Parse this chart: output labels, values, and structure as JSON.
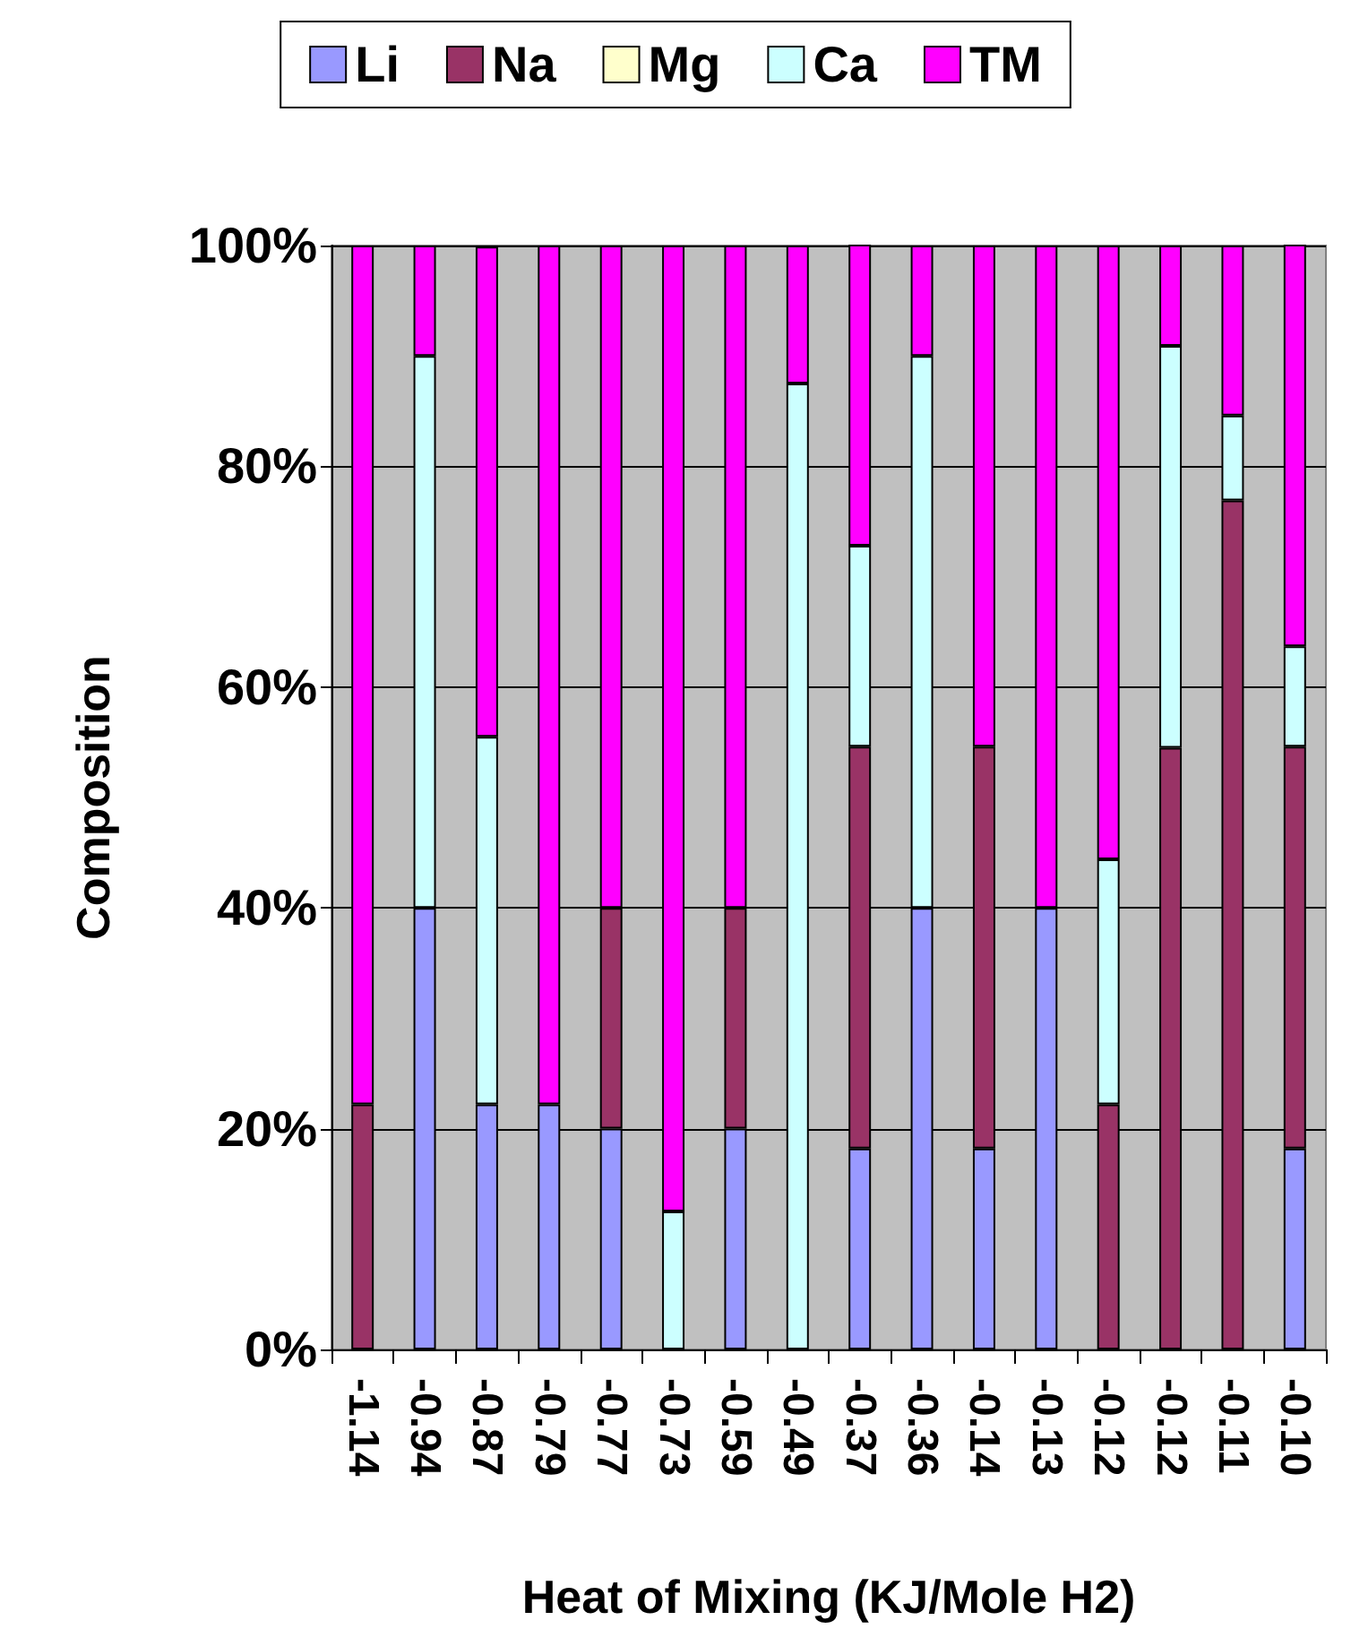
{
  "chart_data": {
    "type": "bar",
    "stacked": true,
    "xlabel": "Heat of Mixing (KJ/Mole H2)",
    "ylabel": "Composition",
    "categories": [
      "-1.14",
      "-0.94",
      "-0.87",
      "-0.79",
      "-0.77",
      "-0.73",
      "-0.59",
      "-0.49",
      "-0.37",
      "-0.36",
      "-0.14",
      "-0.13",
      "-0.12",
      "-0.12",
      "-0.11",
      "-0.10"
    ],
    "series": [
      {
        "name": "Li",
        "color": "#9999ff",
        "values": [
          0,
          40,
          22.2,
          22.2,
          20,
          0,
          20,
          0,
          18.2,
          40,
          18.2,
          40,
          0,
          0,
          0,
          18.2
        ]
      },
      {
        "name": "Na",
        "color": "#993366",
        "values": [
          22.2,
          0,
          0,
          0,
          20,
          0,
          20,
          0,
          36.4,
          0,
          36.4,
          0,
          22.2,
          54.5,
          76.9,
          36.4
        ]
      },
      {
        "name": "Mg",
        "color": "#ffffcc",
        "values": [
          0,
          0,
          0,
          0,
          0,
          0,
          0,
          0,
          0,
          0,
          0,
          0,
          0,
          0,
          0,
          0
        ]
      },
      {
        "name": "Ca",
        "color": "#ccffff",
        "values": [
          0,
          50,
          33.3,
          0,
          0,
          12.5,
          0,
          87.5,
          18.2,
          50,
          0,
          0,
          22.2,
          36.4,
          7.7,
          9.1
        ]
      },
      {
        "name": "TM",
        "color": "#ff00ff",
        "values": [
          77.8,
          10,
          44.4,
          77.8,
          60,
          87.5,
          60,
          12.5,
          27.3,
          10,
          45.4,
          60,
          55.6,
          9.1,
          15.4,
          36.4
        ]
      }
    ],
    "ylim": [
      0,
      100
    ],
    "yticks": [
      {
        "value": 0,
        "label": "0%"
      },
      {
        "value": 20,
        "label": "20%"
      },
      {
        "value": 40,
        "label": "40%"
      },
      {
        "value": 60,
        "label": "60%"
      },
      {
        "value": 80,
        "label": "80%"
      },
      {
        "value": 100,
        "label": "100%"
      }
    ],
    "grid": "y",
    "legend": "top"
  }
}
